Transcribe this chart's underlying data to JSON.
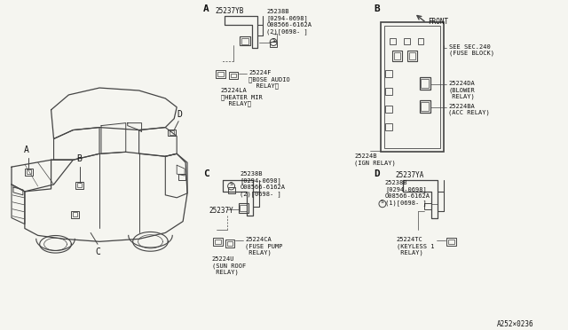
{
  "bg_color": "#f5f5f0",
  "line_color": "#444444",
  "text_color": "#111111",
  "fig_width": 6.4,
  "fig_height": 3.72,
  "footer": "A252×0236",
  "sA": "A",
  "sB": "B",
  "sC": "C",
  "sD": "D",
  "p_25237YB": "25237YB",
  "p_25238B_A": "25238B\n[0294-0698]\nÓ08566-6162A\n(2)[0698- ]",
  "p_25224F": "25224F\n〈BOSE AUDIO\n  RELAY〉",
  "p_25224LA": "25224LA\n〈HEATER MIR\n  RELAY〉",
  "p_see_sec": "SEE SEC.240\n(FUSE BLOCK)",
  "p_front": "FRONT",
  "p_25224DA": "25224DA\n(BLOWER\n RELAY)",
  "p_25224BA": "25224BA\n(ACC RELAY)",
  "p_25224B": "25224B\n(IGN RELAY)",
  "p_25238B_C": "25238B\n[0294-0698]\nÓ08566-6162A\n(2)[0698- ]",
  "p_25237Y": "25237Y",
  "p_25224CA": "25224CA\n(FUSE PUMP\n RELAY)",
  "p_25224U": "25224U\n(SUN ROOF\n RELAY)",
  "p_25237YA": "25237YA",
  "p_25238B_D": "25238B\n[0294-0698]\nÓ08566-6162A\n(1)[0698- ]",
  "p_25224TC": "25224TC\n(KEYLESS 1\n RELAY)"
}
